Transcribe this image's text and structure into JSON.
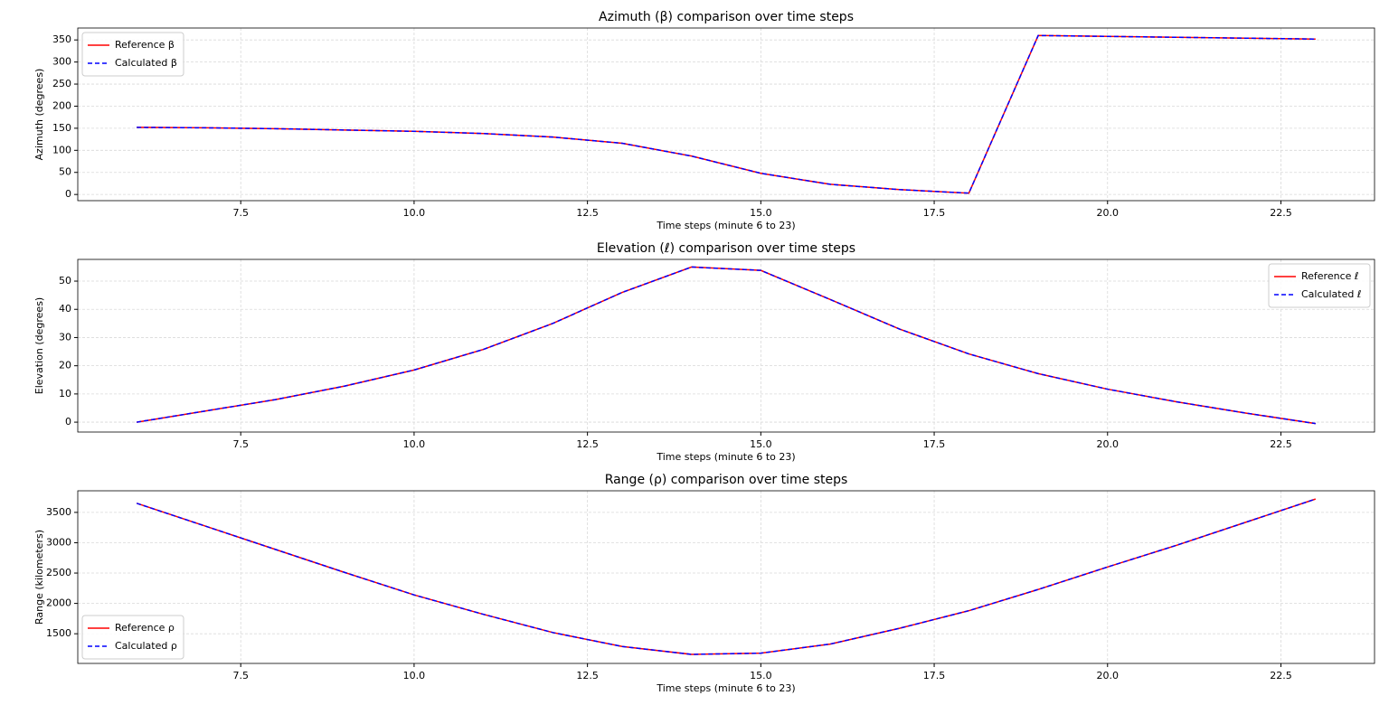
{
  "chart_data": [
    {
      "type": "line",
      "title": "Azimuth (β) comparison over time steps",
      "x_label": "Time steps (minute 6 to 23)",
      "y_label": "Azimuth (degrees)",
      "x": [
        6,
        7,
        8,
        9,
        10,
        11,
        12,
        13,
        14,
        15,
        16,
        17,
        18,
        19,
        20,
        21,
        22,
        23
      ],
      "series": [
        {
          "name": "Reference β",
          "color": "#ff0000",
          "dashed": false,
          "values": [
            152,
            151,
            149,
            146,
            143,
            138,
            130,
            116,
            87,
            48,
            23,
            11,
            3,
            360,
            358,
            356,
            354,
            352
          ]
        },
        {
          "name": "Calculated β",
          "color": "#0000ff",
          "dashed": true,
          "values": [
            152,
            151,
            149,
            146,
            143,
            138,
            130,
            116,
            87,
            48,
            23,
            11,
            3,
            360,
            358,
            356,
            354,
            352
          ]
        }
      ],
      "xlim": [
        5.15,
        23.85
      ],
      "ylim": [
        -14,
        377
      ],
      "xticks": [
        7.5,
        {
          "value": 10,
          "label": "10.0"
        },
        12.5,
        {
          "value": 15,
          "label": "15.0"
        },
        17.5,
        {
          "value": 20,
          "label": "20.0"
        },
        22.5
      ],
      "yticks": [
        0,
        50,
        100,
        150,
        200,
        250,
        300,
        350
      ],
      "grid": true,
      "legend": "upper-left"
    },
    {
      "type": "line",
      "title": "Elevation (ℓ) comparison over time steps",
      "x_label": "Time steps (minute 6 to 23)",
      "y_label": "Elevation (degrees)",
      "x": [
        6,
        7,
        8,
        9,
        10,
        11,
        12,
        13,
        14,
        15,
        16,
        17,
        18,
        19,
        20,
        21,
        22,
        23
      ],
      "series": [
        {
          "name": "Reference ℓ",
          "color": "#ff0000",
          "dashed": false,
          "values": [
            0,
            4,
            8,
            12.8,
            18.5,
            25.8,
            35,
            46,
            55,
            53.8,
            43.5,
            33,
            24.2,
            17.2,
            11.7,
            7.2,
            3.2,
            -0.5
          ]
        },
        {
          "name": "Calculated ℓ",
          "color": "#0000ff",
          "dashed": true,
          "values": [
            0,
            4,
            8,
            12.8,
            18.5,
            25.8,
            35,
            46,
            55,
            53.8,
            43.5,
            33,
            24.2,
            17.2,
            11.7,
            7.2,
            3.2,
            -0.5
          ]
        }
      ],
      "xlim": [
        5.15,
        23.85
      ],
      "ylim": [
        -3.5,
        57.7
      ],
      "xticks": [
        7.5,
        {
          "value": 10,
          "label": "10.0"
        },
        12.5,
        {
          "value": 15,
          "label": "15.0"
        },
        17.5,
        {
          "value": 20,
          "label": "20.0"
        },
        22.5
      ],
      "yticks": [
        0,
        10,
        20,
        30,
        40,
        50
      ],
      "grid": true,
      "legend": "upper-right"
    },
    {
      "type": "line",
      "title": "Range (ρ) comparison over time steps",
      "x_label": "Time steps (minute 6 to 23)",
      "y_label": "Range (kilometers)",
      "x": [
        6,
        7,
        8,
        9,
        10,
        11,
        12,
        13,
        14,
        15,
        16,
        17,
        18,
        19,
        20,
        21,
        22,
        23
      ],
      "series": [
        {
          "name": "Reference ρ",
          "color": "#ff0000",
          "dashed": false,
          "values": [
            3650,
            3270,
            2890,
            2510,
            2140,
            1820,
            1520,
            1290,
            1160,
            1180,
            1330,
            1590,
            1880,
            2230,
            2600,
            2960,
            3340,
            3720
          ]
        },
        {
          "name": "Calculated ρ",
          "color": "#0000ff",
          "dashed": true,
          "values": [
            3650,
            3270,
            2890,
            2510,
            2140,
            1820,
            1520,
            1290,
            1160,
            1180,
            1330,
            1590,
            1880,
            2230,
            2600,
            2960,
            3340,
            3720
          ]
        }
      ],
      "xlim": [
        5.15,
        23.85
      ],
      "ylim": [
        1011,
        3856
      ],
      "xticks": [
        7.5,
        {
          "value": 10,
          "label": "10.0"
        },
        12.5,
        {
          "value": 15,
          "label": "15.0"
        },
        17.5,
        {
          "value": 20,
          "label": "20.0"
        },
        22.5
      ],
      "yticks": [
        1500,
        2000,
        2500,
        3000,
        3500
      ],
      "grid": true,
      "legend": "lower-left"
    }
  ]
}
